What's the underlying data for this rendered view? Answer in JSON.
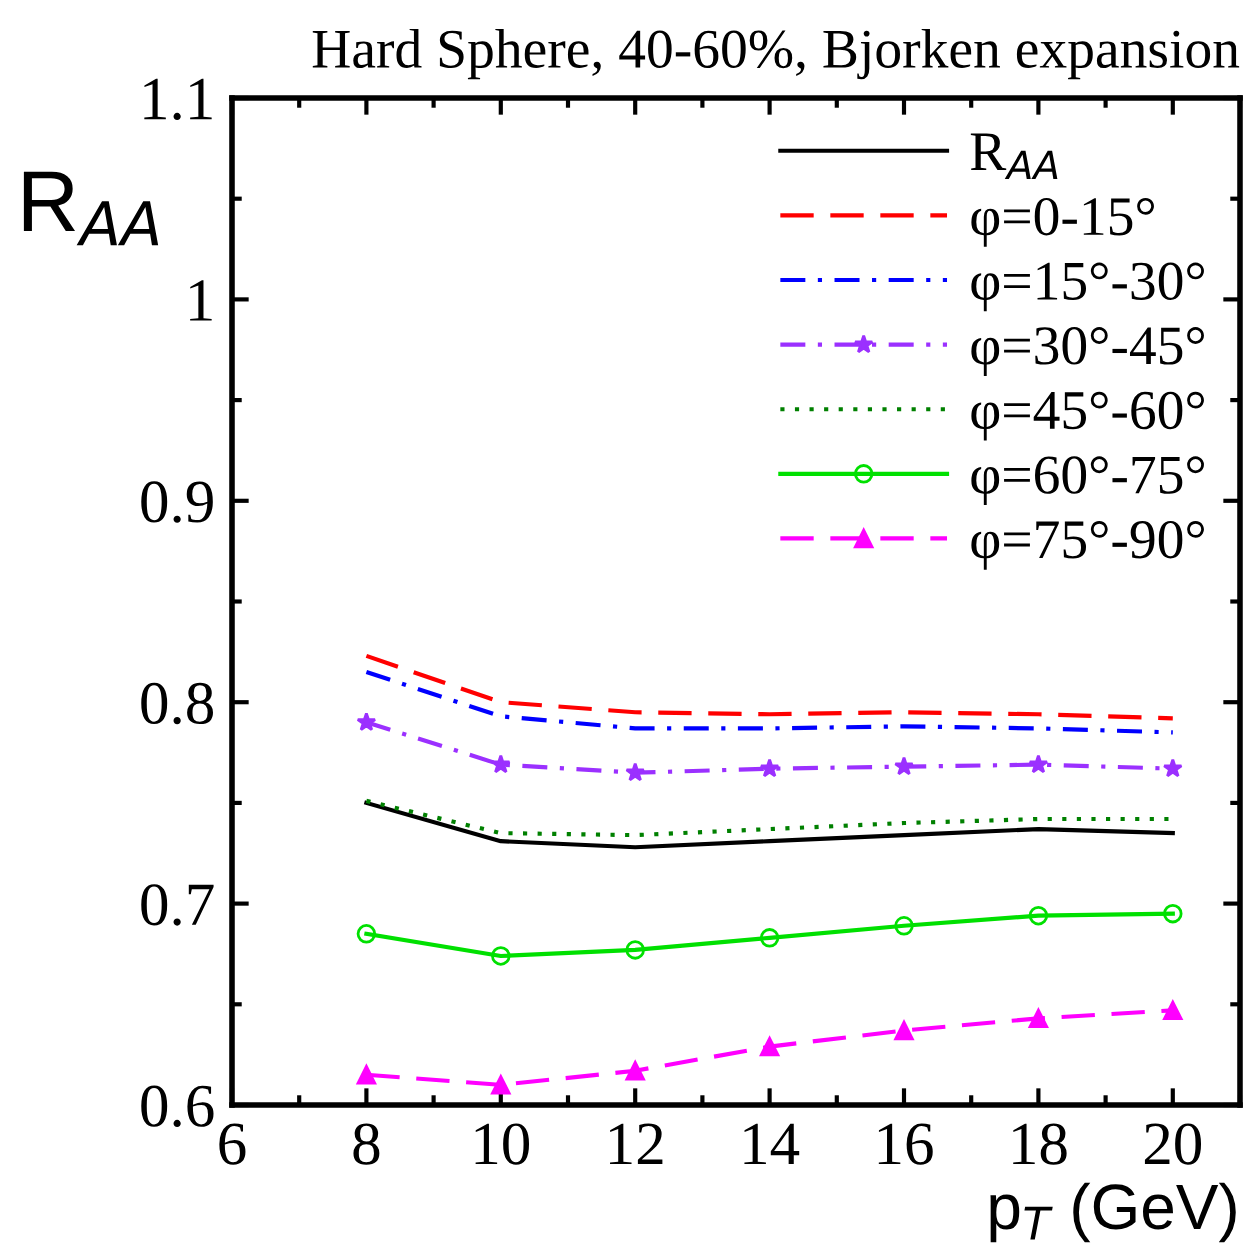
{
  "chart_data": {
    "type": "line",
    "title": "Hard Sphere, 40-60%, Bjorken expansion",
    "xlabel": "p$_{T}$ (GeV)",
    "ylabel": "R$_{AA}$",
    "x": [
      8,
      10,
      12,
      14,
      16,
      18,
      20
    ],
    "series": [
      {
        "name": "R$_{AA}$",
        "color": "#000000",
        "line_style": "solid",
        "marker": "none",
        "values": [
          0.75,
          0.731,
          0.728,
          0.731,
          0.734,
          0.737,
          0.735
        ]
      },
      {
        "name": "φ=0-15°",
        "color": "#ff0000",
        "line_style": "dashed",
        "marker": "none",
        "values": [
          0.823,
          0.8,
          0.795,
          0.794,
          0.795,
          0.794,
          0.792
        ]
      },
      {
        "name": "φ=15°-30°",
        "color": "#0000ff",
        "line_style": "dashdot",
        "marker": "none",
        "values": [
          0.815,
          0.793,
          0.787,
          0.787,
          0.788,
          0.787,
          0.785
        ]
      },
      {
        "name": "φ=30°-45°",
        "color": "#9b30ff",
        "line_style": "dashdot",
        "marker": "star",
        "values": [
          0.79,
          0.769,
          0.765,
          0.767,
          0.768,
          0.769,
          0.767
        ]
      },
      {
        "name": "φ=45°-60°",
        "color": "#008000",
        "line_style": "dotted",
        "marker": "none",
        "values": [
          0.751,
          0.735,
          0.734,
          0.737,
          0.74,
          0.742,
          0.742
        ]
      },
      {
        "name": "φ=60°-75°",
        "color": "#00e000",
        "line_style": "solid",
        "marker": "circle",
        "values": [
          0.685,
          0.674,
          0.677,
          0.683,
          0.689,
          0.694,
          0.695
        ]
      },
      {
        "name": "φ=75°-90°",
        "color": "#ff00ff",
        "line_style": "dashed",
        "marker": "triangle",
        "values": [
          0.615,
          0.61,
          0.617,
          0.629,
          0.637,
          0.643,
          0.647
        ]
      }
    ],
    "xlim": [
      6,
      21
    ],
    "xticks": [
      6,
      {
        "value": 7,
        "label": null
      },
      8,
      {
        "value": 9,
        "label": null
      },
      10,
      {
        "value": 11,
        "label": null
      },
      12,
      {
        "value": 13,
        "label": null
      },
      14,
      {
        "value": 15,
        "label": null
      },
      16,
      {
        "value": 17,
        "label": null
      },
      18,
      {
        "value": 19,
        "label": null
      },
      20,
      {
        "value": 21,
        "label": null
      }
    ],
    "ylim": [
      0.6,
      1.1
    ],
    "yticks": [
      0.6,
      {
        "value": 0.65,
        "label": null
      },
      0.7,
      {
        "value": 0.75,
        "label": null
      },
      0.8,
      {
        "value": 0.85,
        "label": null
      },
      0.9,
      {
        "value": 0.95,
        "label": null
      },
      1,
      {
        "value": 1.05,
        "label": null
      },
      1.1
    ],
    "grid": false,
    "legend": "top right"
  }
}
